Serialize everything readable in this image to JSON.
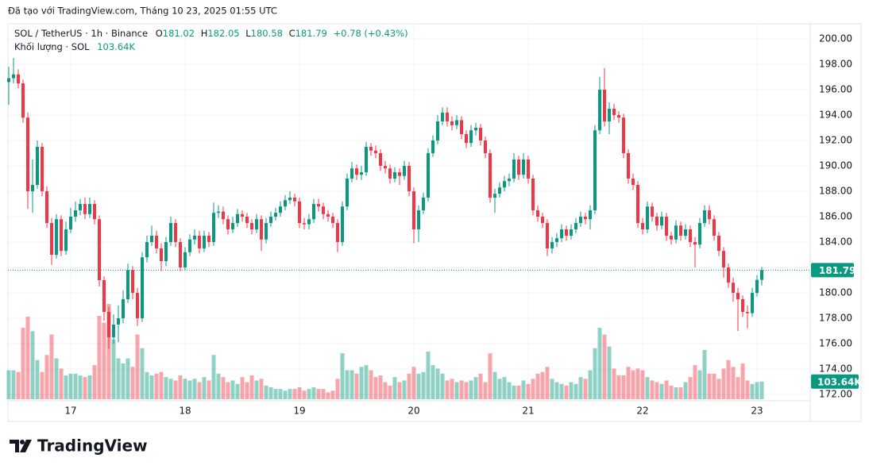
{
  "chart_data": {
    "type": "candlestick",
    "credit": "Đã tạo với TradingView.com, Tháng 10 23, 2025 01:55 UTC",
    "symbol": "SOL / TetherUS · 1h · Binance",
    "ohlc_letters": [
      "O",
      "H",
      "L",
      "C"
    ],
    "change": "+0.78 (+0.43%)",
    "volume_title": "Khối lượng · SOL",
    "volume_label": "103.64K",
    "brand": "TradingView",
    "up_color": "#089981",
    "down_color": "#f23645",
    "grid": true,
    "ylim": [
      171.6,
      200.4
    ],
    "yticks": [
      {
        "value": 172,
        "label": "172.00"
      },
      {
        "value": 174,
        "label": "174.00"
      },
      {
        "value": 176,
        "label": "176.00"
      },
      {
        "value": 178,
        "label": "178.00"
      },
      {
        "value": 180,
        "label": "180.00"
      },
      {
        "value": 182,
        "label": "182.00"
      },
      {
        "value": 184,
        "label": "184.00"
      },
      {
        "value": 186,
        "label": "186.00"
      },
      {
        "value": 188,
        "label": "188.00"
      },
      {
        "value": 190,
        "label": "190.00"
      },
      {
        "value": 192,
        "label": "192.00"
      },
      {
        "value": 194,
        "label": "194.00"
      },
      {
        "value": 196,
        "label": "196.00"
      },
      {
        "value": 198,
        "label": "198.00"
      },
      {
        "value": 200,
        "label": "200.00"
      }
    ],
    "xticks": [
      {
        "value": 13,
        "label": "17"
      },
      {
        "value": 37,
        "label": "18"
      },
      {
        "value": 61,
        "label": "19"
      },
      {
        "value": 85,
        "label": "20"
      },
      {
        "value": 109,
        "label": "21"
      },
      {
        "value": 133,
        "label": "22"
      },
      {
        "value": 157,
        "label": "23"
      }
    ],
    "open": [
      196.6,
      196.9,
      197.2,
      196.5,
      193.8,
      188.0,
      188.5,
      191.5,
      188.0,
      185.5,
      183.0,
      185.8,
      183.3,
      185.0,
      186.0,
      186.5,
      187.0,
      186.2,
      187.0,
      185.8,
      181.0,
      178.5,
      176.5,
      177.5,
      178.0,
      179.5,
      181.8,
      180.0,
      178.0,
      182.8,
      184.0,
      184.5,
      183.5,
      182.5,
      184.0,
      185.5,
      184.0,
      182.0,
      183.2,
      184.2,
      184.5,
      183.5,
      184.5,
      184.0,
      186.3,
      186.4,
      185.8,
      185.0,
      185.5,
      186.2,
      186.0,
      185.5,
      185.0,
      185.8,
      184.2,
      185.5,
      186.0,
      186.3,
      186.8,
      187.3,
      187.5,
      187.2,
      185.5,
      185.4,
      185.8,
      187.0,
      186.8,
      186.2,
      186.0,
      185.5,
      184.0,
      186.8,
      189.0,
      189.8,
      189.3,
      189.5,
      191.5,
      191.2,
      191.0,
      190.0,
      189.8,
      189.0,
      189.5,
      189.2,
      190.0,
      188.0,
      185.0,
      186.5,
      187.5,
      191.0,
      192.0,
      193.5,
      194.2,
      193.5,
      193.2,
      193.6,
      192.5,
      191.8,
      192.8,
      193.0,
      192.0,
      191.0,
      187.5,
      187.8,
      188.3,
      188.8,
      189.0,
      190.5,
      189.3,
      190.5,
      189.0,
      186.5,
      186.0,
      185.5,
      183.5,
      184.0,
      184.3,
      185.0,
      184.5,
      185.0,
      185.5,
      186.0,
      185.8,
      186.5,
      192.8,
      196.0,
      193.5,
      194.5,
      194.0,
      193.8,
      191.0,
      189.0,
      188.5,
      185.5,
      185.0,
      186.8,
      186.0,
      185.3,
      186.0,
      184.5,
      184.2,
      185.3,
      184.5,
      185.0,
      184.0,
      183.8,
      185.5,
      186.5,
      185.8,
      184.5,
      183.3,
      182.0,
      180.8,
      180.0,
      179.5,
      178.5,
      178.4,
      180.0,
      181.02
    ],
    "high": [
      197.8,
      198.5,
      197.6,
      196.8,
      194.2,
      190.5,
      192.0,
      191.8,
      188.4,
      185.9,
      186.2,
      186.1,
      185.6,
      186.7,
      187.2,
      187.4,
      187.5,
      187.5,
      187.3,
      186.1,
      181.3,
      178.9,
      178.3,
      179.0,
      180.2,
      182.3,
      182.1,
      180.4,
      183.2,
      184.5,
      185.3,
      184.9,
      183.9,
      184.4,
      186.0,
      185.8,
      184.3,
      183.6,
      184.6,
      185.0,
      184.9,
      184.9,
      184.8,
      187.1,
      186.9,
      186.8,
      186.1,
      186.0,
      186.6,
      186.5,
      186.3,
      185.8,
      186.2,
      186.1,
      185.9,
      186.4,
      186.7,
      187.2,
      187.7,
      188.0,
      187.8,
      187.5,
      185.9,
      186.2,
      187.4,
      187.4,
      187.1,
      186.5,
      186.3,
      185.8,
      187.2,
      189.4,
      190.3,
      190.1,
      190.0,
      191.9,
      191.8,
      191.6,
      191.3,
      190.4,
      190.1,
      189.9,
      189.8,
      190.4,
      190.3,
      188.3,
      186.9,
      187.9,
      191.4,
      192.4,
      194.0,
      194.6,
      194.6,
      193.9,
      194.0,
      193.9,
      192.8,
      193.2,
      193.4,
      193.3,
      192.3,
      191.3,
      188.2,
      188.7,
      189.2,
      189.4,
      191.0,
      190.8,
      191.0,
      190.8,
      189.3,
      186.9,
      186.3,
      185.8,
      184.4,
      184.7,
      185.4,
      185.3,
      185.4,
      185.9,
      186.4,
      186.3,
      186.9,
      193.2,
      197.0,
      197.7,
      195.0,
      194.9,
      194.3,
      194.1,
      191.3,
      189.4,
      188.8,
      185.9,
      187.2,
      187.1,
      186.3,
      186.4,
      186.3,
      184.8,
      185.7,
      185.6,
      185.4,
      185.3,
      184.4,
      185.9,
      186.9,
      186.9,
      186.1,
      184.8,
      183.6,
      182.3,
      181.2,
      180.4,
      179.8,
      179.0,
      180.4,
      181.4,
      182.05
    ],
    "low": [
      194.8,
      196.5,
      196.1,
      193.4,
      186.6,
      186.3,
      188.2,
      187.6,
      185.1,
      182.2,
      182.7,
      182.9,
      183.0,
      184.7,
      185.6,
      186.1,
      185.8,
      185.9,
      185.4,
      180.5,
      177.8,
      175.6,
      176.0,
      176.1,
      177.6,
      179.2,
      179.5,
      177.4,
      177.7,
      182.4,
      183.7,
      183.1,
      181.7,
      182.1,
      183.7,
      183.6,
      181.7,
      181.8,
      182.9,
      183.8,
      183.1,
      183.2,
      183.6,
      183.7,
      185.9,
      185.4,
      184.6,
      184.7,
      185.2,
      185.6,
      185.1,
      184.6,
      184.7,
      183.3,
      183.9,
      185.2,
      185.7,
      186.0,
      186.5,
      187.0,
      186.8,
      185.1,
      185.0,
      185.0,
      185.5,
      186.4,
      185.8,
      185.6,
      185.1,
      183.2,
      183.7,
      186.5,
      188.7,
      188.9,
      188.9,
      189.2,
      190.8,
      190.6,
      189.6,
      189.4,
      188.6,
      188.7,
      188.5,
      188.9,
      187.6,
      183.9,
      184.0,
      186.2,
      187.2,
      190.7,
      191.7,
      193.2,
      193.1,
      192.8,
      192.9,
      192.1,
      191.4,
      191.5,
      192.4,
      191.6,
      190.6,
      187.1,
      186.3,
      187.5,
      188.0,
      188.4,
      188.7,
      188.9,
      189.0,
      188.6,
      186.1,
      185.6,
      185.1,
      182.9,
      183.1,
      183.6,
      184.0,
      184.1,
      184.2,
      184.7,
      185.2,
      185.4,
      185.0,
      186.2,
      192.5,
      193.1,
      192.5,
      193.6,
      193.4,
      190.6,
      188.6,
      188.1,
      185.1,
      184.6,
      184.7,
      185.6,
      184.9,
      185.0,
      184.1,
      183.8,
      183.9,
      184.1,
      184.2,
      183.6,
      182.0,
      183.5,
      185.2,
      185.4,
      184.1,
      182.9,
      181.2,
      180.4,
      179.3,
      177.0,
      178.1,
      177.2,
      178.1,
      179.7,
      180.58
    ],
    "close": [
      196.9,
      197.2,
      196.5,
      193.8,
      188.0,
      188.5,
      191.5,
      188.0,
      185.5,
      183.0,
      185.8,
      183.3,
      185.0,
      186.0,
      186.5,
      187.0,
      186.2,
      187.0,
      185.8,
      181.0,
      178.5,
      176.5,
      177.5,
      178.0,
      179.5,
      181.8,
      180.0,
      178.0,
      182.8,
      184.0,
      184.5,
      183.5,
      182.5,
      184.0,
      185.5,
      184.0,
      182.0,
      183.2,
      184.2,
      184.5,
      183.5,
      184.5,
      184.0,
      186.3,
      186.4,
      185.8,
      185.0,
      185.5,
      186.2,
      186.0,
      185.5,
      185.0,
      185.8,
      184.2,
      185.5,
      186.0,
      186.3,
      186.8,
      187.3,
      187.5,
      187.2,
      185.5,
      185.4,
      185.8,
      187.0,
      186.8,
      186.2,
      186.0,
      185.5,
      184.0,
      186.8,
      189.0,
      189.8,
      189.3,
      189.5,
      191.5,
      191.2,
      191.0,
      190.0,
      189.8,
      189.0,
      189.5,
      189.2,
      190.0,
      188.0,
      185.0,
      186.5,
      187.5,
      191.0,
      192.0,
      193.5,
      194.2,
      193.5,
      193.2,
      193.6,
      192.5,
      191.8,
      192.8,
      193.0,
      192.0,
      191.0,
      187.5,
      187.8,
      188.3,
      188.8,
      189.0,
      190.5,
      189.3,
      190.5,
      189.0,
      186.5,
      186.0,
      185.5,
      183.5,
      184.0,
      184.3,
      185.0,
      184.5,
      185.0,
      185.5,
      186.0,
      185.8,
      186.5,
      192.8,
      196.0,
      193.5,
      194.5,
      194.0,
      193.8,
      191.0,
      189.0,
      188.5,
      185.5,
      185.0,
      186.8,
      186.0,
      185.3,
      186.0,
      184.5,
      184.2,
      185.3,
      184.5,
      185.0,
      184.0,
      183.8,
      185.5,
      186.5,
      185.8,
      184.5,
      183.3,
      182.0,
      180.8,
      180.0,
      179.5,
      178.5,
      178.4,
      180.0,
      181.02,
      181.79
    ],
    "volume": [
      170000,
      170000,
      160000,
      420000,
      485000,
      400000,
      230000,
      160000,
      260000,
      380000,
      240000,
      180000,
      140000,
      150000,
      150000,
      140000,
      130000,
      140000,
      200000,
      490000,
      450000,
      560000,
      350000,
      240000,
      210000,
      240000,
      190000,
      380000,
      300000,
      160000,
      140000,
      150000,
      160000,
      130000,
      120000,
      110000,
      140000,
      120000,
      110000,
      120000,
      100000,
      130000,
      110000,
      260000,
      150000,
      130000,
      100000,
      110000,
      90000,
      130000,
      100000,
      140000,
      110000,
      120000,
      80000,
      70000,
      60000,
      60000,
      50000,
      60000,
      60000,
      70000,
      50000,
      60000,
      70000,
      60000,
      60000,
      40000,
      50000,
      120000,
      270000,
      170000,
      170000,
      150000,
      190000,
      200000,
      170000,
      130000,
      140000,
      100000,
      80000,
      130000,
      100000,
      110000,
      150000,
      190000,
      150000,
      160000,
      280000,
      200000,
      180000,
      150000,
      110000,
      120000,
      100000,
      110000,
      100000,
      110000,
      130000,
      150000,
      100000,
      270000,
      160000,
      120000,
      130000,
      100000,
      80000,
      80000,
      110000,
      90000,
      120000,
      150000,
      160000,
      190000,
      120000,
      100000,
      90000,
      80000,
      100000,
      90000,
      130000,
      120000,
      170000,
      300000,
      420000,
      380000,
      310000,
      180000,
      140000,
      140000,
      190000,
      170000,
      180000,
      170000,
      130000,
      110000,
      100000,
      90000,
      110000,
      80000,
      70000,
      70000,
      100000,
      130000,
      200000,
      170000,
      290000,
      150000,
      150000,
      120000,
      180000,
      230000,
      190000,
      130000,
      210000,
      110000,
      90000,
      100000,
      103640
    ]
  }
}
